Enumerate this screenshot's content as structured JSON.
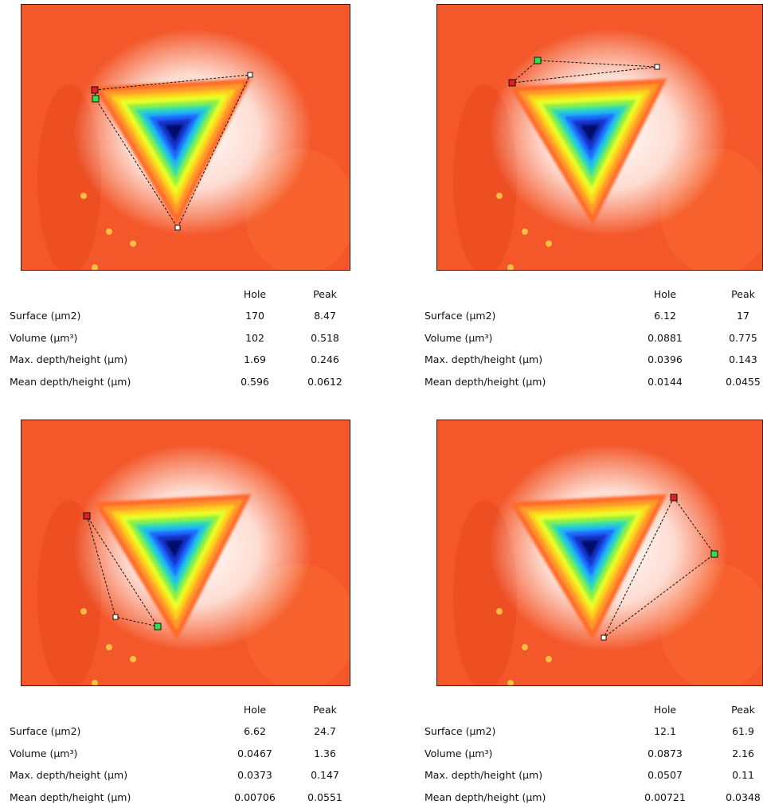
{
  "panels": [
    {
      "table": {
        "header": [
          "Hole",
          "Peak"
        ],
        "rows": [
          [
            "Surface (µm2)",
            "170",
            "8.47"
          ],
          [
            "Volume (µm³)",
            "102",
            "0.518"
          ],
          [
            "Max. depth/height (µm)",
            "1.69",
            "0.246"
          ],
          [
            "Mean depth/height (µm)",
            "0.596",
            "0.0612"
          ]
        ]
      }
    },
    {
      "table": {
        "header": [
          "Hole",
          "Peak"
        ],
        "rows": [
          [
            "Surface (µm2)",
            "6.12",
            "17"
          ],
          [
            "Volume (µm³)",
            "0.0881",
            "0.775"
          ],
          [
            "Max. depth/height (µm)",
            "0.0396",
            "0.143"
          ],
          [
            "Mean depth/height (µm)",
            "0.0144",
            "0.0455"
          ]
        ]
      }
    },
    {
      "table": {
        "header": [
          "Hole",
          "Peak"
        ],
        "rows": [
          [
            "Surface (µm2)",
            "6.62",
            "24.7"
          ],
          [
            "Volume (µm³)",
            "0.0467",
            "1.36"
          ],
          [
            "Max. depth/height (µm)",
            "0.0373",
            "0.147"
          ],
          [
            "Mean depth/height (µm)",
            "0.00706",
            "0.0551"
          ]
        ]
      }
    },
    {
      "table": {
        "header": [
          "Hole",
          "Peak"
        ],
        "rows": [
          [
            "Surface (µm2)",
            "12.1",
            "61.9"
          ],
          [
            "Volume (µm³)",
            "0.0873",
            "2.16"
          ],
          [
            "Max. depth/height (µm)",
            "0.0507",
            "0.11"
          ],
          [
            "Mean depth/height (µm)",
            "0.00721",
            "0.0348"
          ]
        ]
      }
    }
  ]
}
